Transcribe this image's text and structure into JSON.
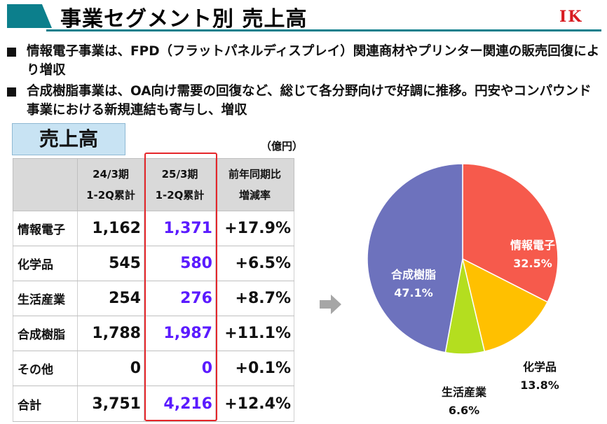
{
  "title": "事業セグメント別 売上高",
  "logo": "IK",
  "bullets": [
    "情報電子事業は、FPD（フラットパネルディスプレイ）関連商材やプリンター関連の販売回復により増収",
    "合成樹脂事業は、OA向け需要の回復など、総じて各分野向けで好調に推移。円安やコンパウンド事業における新規連結も寄与し、増収"
  ],
  "sales_table": {
    "header_label": "売上高",
    "unit": "（億円）",
    "columns": [
      {
        "line1": "24/3期",
        "line2": "1-2Q累計"
      },
      {
        "line1": "25/3期",
        "line2": "1-2Q累計"
      },
      {
        "line1": "前年同期比",
        "line2": "増減率"
      }
    ],
    "rows": [
      {
        "label": "情報電子",
        "prev": "1,162",
        "curr": "1,371",
        "change": "+17.9%"
      },
      {
        "label": "化学品",
        "prev": "545",
        "curr": "580",
        "change": "+6.5%"
      },
      {
        "label": "生活産業",
        "prev": "254",
        "curr": "276",
        "change": "+8.7%"
      },
      {
        "label": "合成樹脂",
        "prev": "1,788",
        "curr": "1,987",
        "change": "+11.1%"
      },
      {
        "label": "その他",
        "prev": "0",
        "curr": "0",
        "change": "+0.1%"
      },
      {
        "label": "合計",
        "prev": "3,751",
        "curr": "4,216",
        "change": "+12.4%"
      }
    ]
  },
  "colors": {
    "accent": "#0c7f8c",
    "logo": "#d81c22",
    "current_value": "#5b1bff",
    "highlight_border": "#e5262a",
    "arrow": "#a6a6a6"
  },
  "chart_data": {
    "type": "pie",
    "slices": [
      {
        "label": "情報電子",
        "value": 32.5,
        "display": "32.5%",
        "color": "#f65a4c"
      },
      {
        "label": "化学品",
        "value": 13.8,
        "display": "13.8%",
        "color": "#ffc000"
      },
      {
        "label": "生活産業",
        "value": 6.6,
        "display": "6.6%",
        "color": "#b4de1f"
      },
      {
        "label": "合成樹脂",
        "value": 47.1,
        "display": "47.1%",
        "color": "#6d72bd"
      }
    ]
  }
}
